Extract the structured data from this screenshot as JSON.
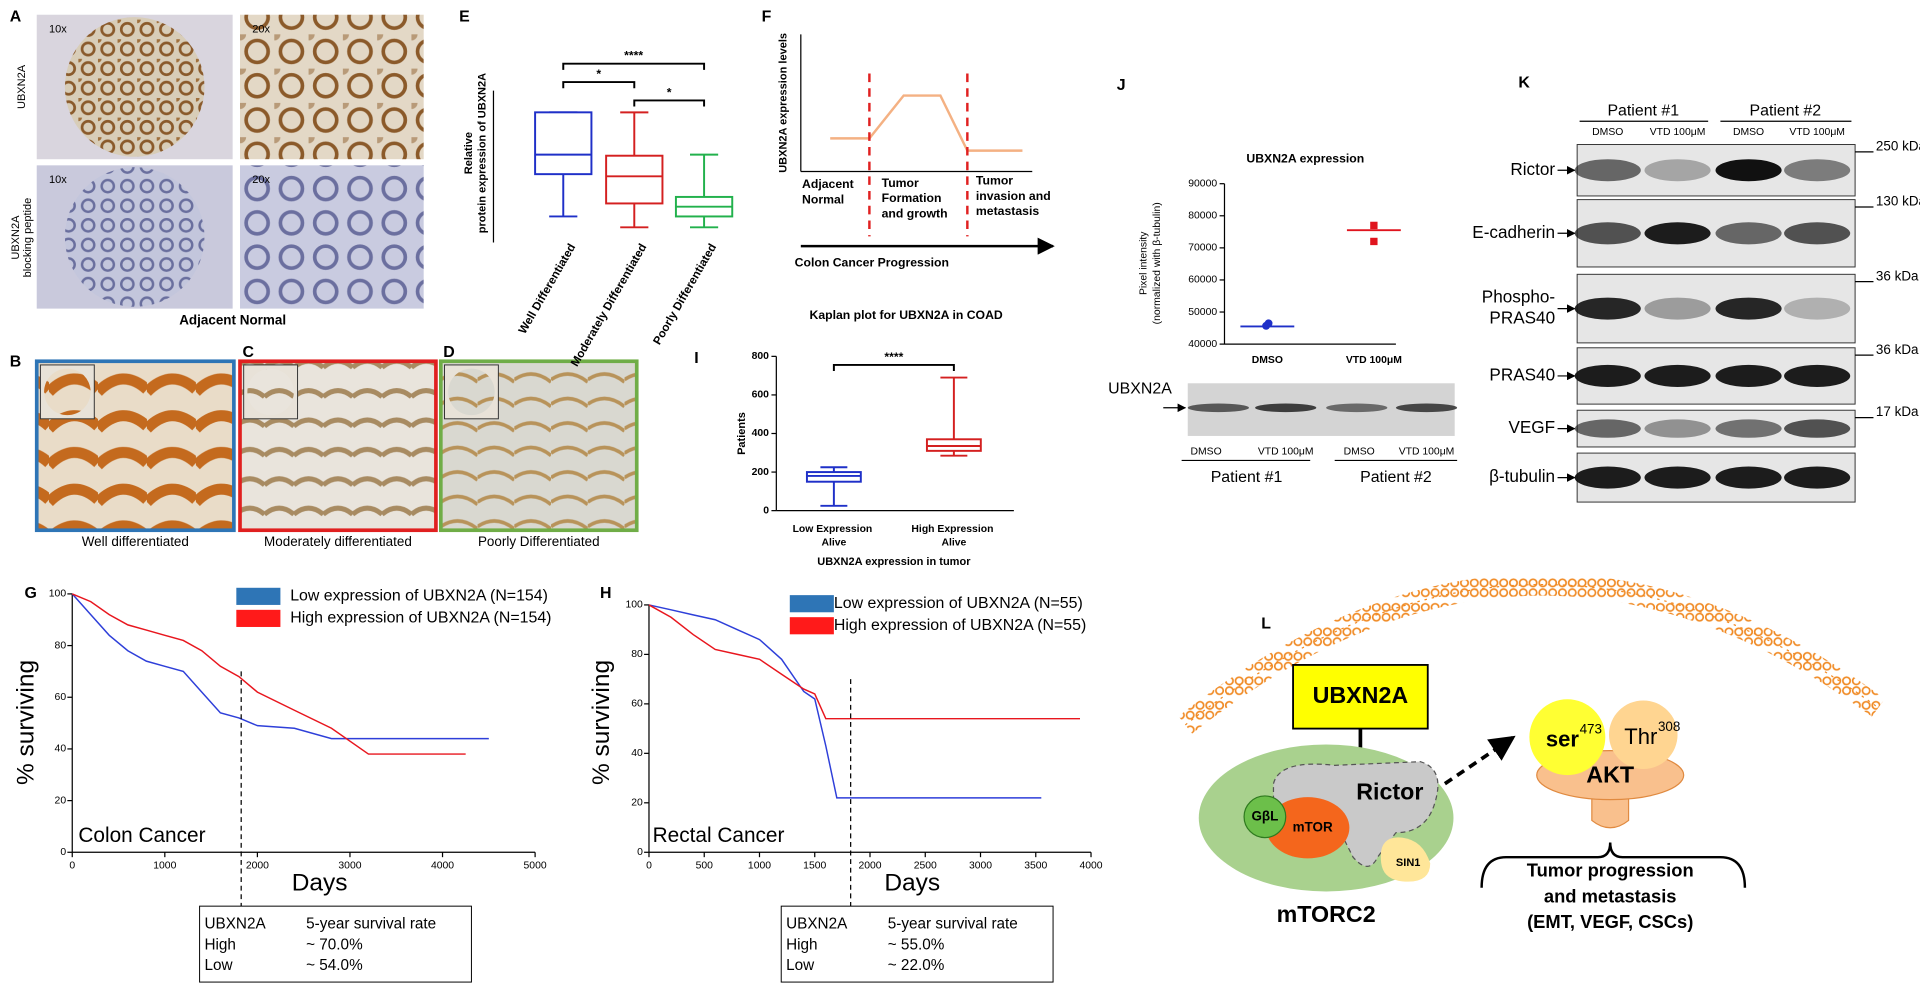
{
  "panels": {
    "A": {
      "label": "A",
      "mag": [
        "10x",
        "20x",
        "10x",
        "20x"
      ],
      "rows": [
        [
          "UBXN2A"
        ],
        [
          "UBXN2A",
          "blocking peptide"
        ]
      ],
      "caption": "Adjacent Normal"
    },
    "BCD": [
      {
        "label": "B",
        "caption": "Well differentiated",
        "color": "#2e75b6"
      },
      {
        "label": "C",
        "caption": "Moderately differentiated",
        "color": "#e02020"
      },
      {
        "label": "D",
        "caption": "Poorly Differentiated",
        "color": "#70ad47"
      }
    ],
    "F": {
      "label": "F",
      "ylabel": "UBXN2A expression levels",
      "stages": [
        [
          "Adjacent",
          "Normal"
        ],
        [
          "Tumor",
          "Formation",
          "and growth"
        ],
        [
          "Tumor",
          "invasion and",
          "metastasis"
        ]
      ],
      "xlabel": "Colon Cancer Progression"
    },
    "J_blot": {
      "protein": "UBXN2A",
      "lanes": [
        "DMSO",
        "VTD 100μM",
        "DMSO",
        "VTD 100μM"
      ],
      "patients": [
        "Patient #1",
        "Patient #2"
      ]
    },
    "K": {
      "label": "K",
      "patients": [
        "Patient #1",
        "Patient #2"
      ],
      "lanes": [
        "DMSO",
        "VTD 100μM",
        "DMSO",
        "VTD 100μM"
      ],
      "rows": [
        {
          "name": [
            "Rictor"
          ],
          "kda": "250 kDa"
        },
        {
          "name": [
            "E-cadherin"
          ],
          "kda": "130 kDa"
        },
        {
          "name": [
            "Phospho-",
            "PRAS40"
          ],
          "kda": "36 kDa"
        },
        {
          "name": [
            "PRAS40"
          ],
          "kda": "36 kDa"
        },
        {
          "name": [
            "VEGF"
          ],
          "kda": "17 kDa"
        },
        {
          "name": [
            "β-tubulin"
          ]
        }
      ]
    },
    "L": {
      "label": "L",
      "inhibitor": "UBXN2A",
      "rictor": "Rictor",
      "gbl": "GβL",
      "mtor": "mTOR",
      "sin1": "SIN1",
      "complex": "mTORC2",
      "ser": {
        "base": "ser",
        "sup": "473"
      },
      "thr": {
        "base": "Thr",
        "sup": "308"
      },
      "akt": "AKT",
      "outcome": [
        "Tumor progression",
        "and metastasis",
        "(EMT, VEGF, CSCs)"
      ]
    }
  },
  "chart_data": [
    {
      "type": "box",
      "panel": "E",
      "ylabel": [
        "Relative",
        "protein expression of UBXN2A"
      ],
      "categories": [
        "Well Differentiated",
        "Moderately Differentiated",
        "Poorly Differentiated"
      ],
      "colors": [
        "#1f30c8",
        "#d42020",
        "#22b14c"
      ],
      "values": [
        [
          2.4,
          6.3,
          8.1,
          12,
          12
        ],
        [
          1.4,
          3.6,
          6.1,
          8,
          12
        ],
        [
          1.4,
          2.4,
          3.3,
          4.2,
          8.1
        ]
      ],
      "ylim": [
        0,
        14
      ],
      "significance": [
        "****",
        "*",
        "*"
      ]
    },
    {
      "type": "box",
      "panel": "I",
      "title": "Kaplan plot for UBXN2A in COAD",
      "ylabel": "Patients",
      "xlabel": "UBXN2A expression in tumor",
      "categories": [
        "Low Expression Alive",
        "High Expression Alive"
      ],
      "colors": [
        "#1f30c8",
        "#d42020"
      ],
      "values": [
        [
          25,
          150,
          180,
          200,
          225
        ],
        [
          285,
          310,
          335,
          370,
          690
        ]
      ],
      "ylim": [
        0,
        800
      ],
      "yticks": [
        0,
        200,
        400,
        600,
        800
      ],
      "significance": [
        "****"
      ]
    },
    {
      "type": "scatter",
      "panel": "J",
      "title": "UBXN2A expression",
      "ylabel": [
        "Pixel intensity",
        "(normalized with β-tubulin)"
      ],
      "categories": [
        "DMSO",
        "VTD 100μM"
      ],
      "colors": [
        "#1f30c8",
        "#e0141e"
      ],
      "values": [
        [
          46500,
          45700
        ],
        [
          77000,
          72000
        ]
      ],
      "means": [
        45500,
        75500
      ],
      "ylim": [
        40000,
        90000
      ],
      "yticks": [
        40000,
        50000,
        60000,
        70000,
        80000,
        90000
      ]
    },
    {
      "type": "line",
      "panel": "G",
      "annotation": "Colon Cancer",
      "xlabel": "Days",
      "ylabel": "% surviving",
      "xlim": [
        0,
        5000
      ],
      "xticks": [
        0,
        1000,
        2000,
        3000,
        4000,
        5000
      ],
      "ylim": [
        0,
        100
      ],
      "yticks": [
        0,
        20,
        40,
        60,
        80,
        100
      ],
      "vline": 1825,
      "series": [
        {
          "name": "Low expression of UBXN2A (N=154)",
          "color": "#2e3fd9",
          "legend_color": "#2e75b6",
          "x": [
            0,
            200,
            400,
            600,
            800,
            1000,
            1200,
            1400,
            1600,
            1800,
            2000,
            2400,
            2800,
            3000,
            4500
          ],
          "values": [
            100,
            92,
            84,
            78,
            74,
            72,
            70,
            62,
            54,
            52,
            49,
            48,
            44,
            44,
            44
          ]
        },
        {
          "name": "High expression of UBXN2A (N=154)",
          "color": "#e8161e",
          "legend_color": "#ff1a1a",
          "x": [
            0,
            200,
            400,
            600,
            800,
            1000,
            1200,
            1400,
            1600,
            1800,
            2000,
            2400,
            2800,
            3200,
            4250
          ],
          "values": [
            100,
            97,
            92,
            88,
            86,
            84,
            82,
            78,
            72,
            68,
            62,
            55,
            48,
            38,
            38
          ]
        }
      ],
      "table": {
        "header": [
          "UBXN2A",
          "5-year survival rate"
        ],
        "rows": [
          [
            "High",
            "~ 70.0%"
          ],
          [
            "Low",
            "~ 54.0%"
          ]
        ]
      }
    },
    {
      "type": "line",
      "panel": "H",
      "annotation": "Rectal Cancer",
      "xlabel": "Days",
      "ylabel": "% surviving",
      "xlim": [
        0,
        4000
      ],
      "xticks": [
        0,
        500,
        1000,
        1500,
        2000,
        2500,
        3000,
        3500,
        4000
      ],
      "ylim": [
        0,
        100
      ],
      "yticks": [
        0,
        20,
        40,
        60,
        80,
        100
      ],
      "vline": 1825,
      "series": [
        {
          "name": "Low expression of UBXN2A (N=55)",
          "color": "#2e3fd9",
          "legend_color": "#2e75b6",
          "x": [
            0,
            200,
            400,
            600,
            800,
            1000,
            1200,
            1400,
            1500,
            1600,
            1700,
            3550
          ],
          "values": [
            100,
            98,
            96,
            94,
            90,
            86,
            78,
            65,
            62,
            43,
            22,
            22
          ]
        },
        {
          "name": "High expression of UBXN2A (N=55)",
          "color": "#e8161e",
          "legend_color": "#ff1a1a",
          "x": [
            0,
            200,
            400,
            600,
            800,
            1000,
            1200,
            1400,
            1500,
            1600,
            3900
          ],
          "values": [
            100,
            95,
            88,
            82,
            80,
            78,
            72,
            66,
            64,
            54,
            54
          ]
        }
      ],
      "table": {
        "header": [
          "UBXN2A",
          "5-year survival rate"
        ],
        "rows": [
          [
            "High",
            "~ 55.0%"
          ],
          [
            "Low",
            "~ 22.0%"
          ]
        ]
      }
    }
  ]
}
